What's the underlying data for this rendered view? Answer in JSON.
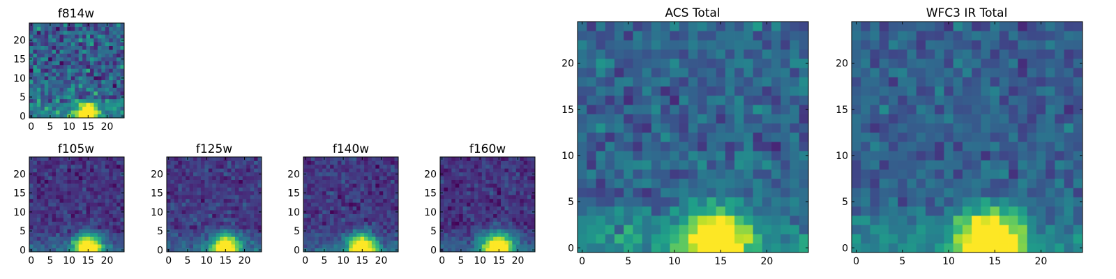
{
  "figure": {
    "colormap": "viridis",
    "colormap_stops": [
      "#440154",
      "#482878",
      "#3e4989",
      "#31688e",
      "#26828e",
      "#1f9e89",
      "#35b779",
      "#6ece58",
      "#b5de2b",
      "#fde725"
    ],
    "frame_color": "#000000",
    "background": "#ffffff"
  },
  "chart_data": [
    {
      "type": "heatmap",
      "title": "f814w",
      "grid_size": 25,
      "xlim": [
        -0.5,
        24.5
      ],
      "ylim": [
        -0.5,
        24.5
      ],
      "xticks": [
        0,
        5,
        10,
        15,
        20
      ],
      "yticks": [
        0,
        5,
        10,
        15,
        20
      ],
      "source": {
        "center": [
          14.5,
          0.5
        ],
        "peak": 1.0,
        "sigma": 2.0
      },
      "background": {
        "mean": 0.3,
        "noise": 0.13
      },
      "seed": 11,
      "grid": false
    },
    {
      "type": "heatmap",
      "title": "f105w",
      "grid_size": 25,
      "xlim": [
        -0.5,
        24.5
      ],
      "ylim": [
        -0.5,
        24.5
      ],
      "xticks": [
        0,
        5,
        10,
        15,
        20
      ],
      "yticks": [
        0,
        5,
        10,
        15,
        20
      ],
      "source": {
        "center": [
          15.0,
          0.5
        ],
        "peak": 1.0,
        "sigma": 2.6
      },
      "background": {
        "mean": 0.15,
        "noise": 0.06
      },
      "seed": 23,
      "grid": false
    },
    {
      "type": "heatmap",
      "title": "f125w",
      "grid_size": 25,
      "xlim": [
        -0.5,
        24.5
      ],
      "ylim": [
        -0.5,
        24.5
      ],
      "xticks": [
        0,
        5,
        10,
        15,
        20
      ],
      "yticks": [
        0,
        5,
        10,
        15,
        20
      ],
      "source": {
        "center": [
          15.0,
          0.5
        ],
        "peak": 1.0,
        "sigma": 2.5
      },
      "background": {
        "mean": 0.17,
        "noise": 0.06
      },
      "seed": 37,
      "grid": false
    },
    {
      "type": "heatmap",
      "title": "f140w",
      "grid_size": 25,
      "xlim": [
        -0.5,
        24.5
      ],
      "ylim": [
        -0.5,
        24.5
      ],
      "xticks": [
        0,
        5,
        10,
        15,
        20
      ],
      "yticks": [
        0,
        5,
        10,
        15,
        20
      ],
      "source": {
        "center": [
          15.0,
          0.5
        ],
        "peak": 1.0,
        "sigma": 2.6
      },
      "background": {
        "mean": 0.16,
        "noise": 0.06
      },
      "seed": 41,
      "grid": false
    },
    {
      "type": "heatmap",
      "title": "f160w",
      "grid_size": 25,
      "xlim": [
        -0.5,
        24.5
      ],
      "ylim": [
        -0.5,
        24.5
      ],
      "xticks": [
        0,
        5,
        10,
        15,
        20
      ],
      "yticks": [
        0,
        5,
        10,
        15,
        20
      ],
      "source": {
        "center": [
          14.5,
          0.5
        ],
        "peak": 1.0,
        "sigma": 2.8
      },
      "background": {
        "mean": 0.15,
        "noise": 0.06
      },
      "seed": 53,
      "grid": false
    },
    {
      "type": "heatmap",
      "title": "ACS Total",
      "grid_size": 25,
      "xlim": [
        -0.5,
        24.5
      ],
      "ylim": [
        -0.5,
        24.5
      ],
      "xticks": [
        0,
        5,
        10,
        15,
        20
      ],
      "yticks": [
        0,
        5,
        10,
        15,
        20
      ],
      "source": {
        "center": [
          14.5,
          0.5
        ],
        "peak": 1.0,
        "sigma": 2.3
      },
      "background": {
        "mean": 0.33,
        "noise": 0.08
      },
      "seed": 67,
      "grid": false
    },
    {
      "type": "heatmap",
      "title": "WFC3 IR Total",
      "grid_size": 25,
      "xlim": [
        -0.5,
        24.5
      ],
      "ylim": [
        -0.5,
        24.5
      ],
      "xticks": [
        0,
        5,
        10,
        15,
        20
      ],
      "yticks": [
        0,
        5,
        10,
        15,
        20
      ],
      "source": {
        "center": [
          14.5,
          0.5
        ],
        "peak": 1.0,
        "sigma": 2.4
      },
      "background": {
        "mean": 0.3,
        "noise": 0.07
      },
      "seed": 79,
      "grid": false
    }
  ]
}
